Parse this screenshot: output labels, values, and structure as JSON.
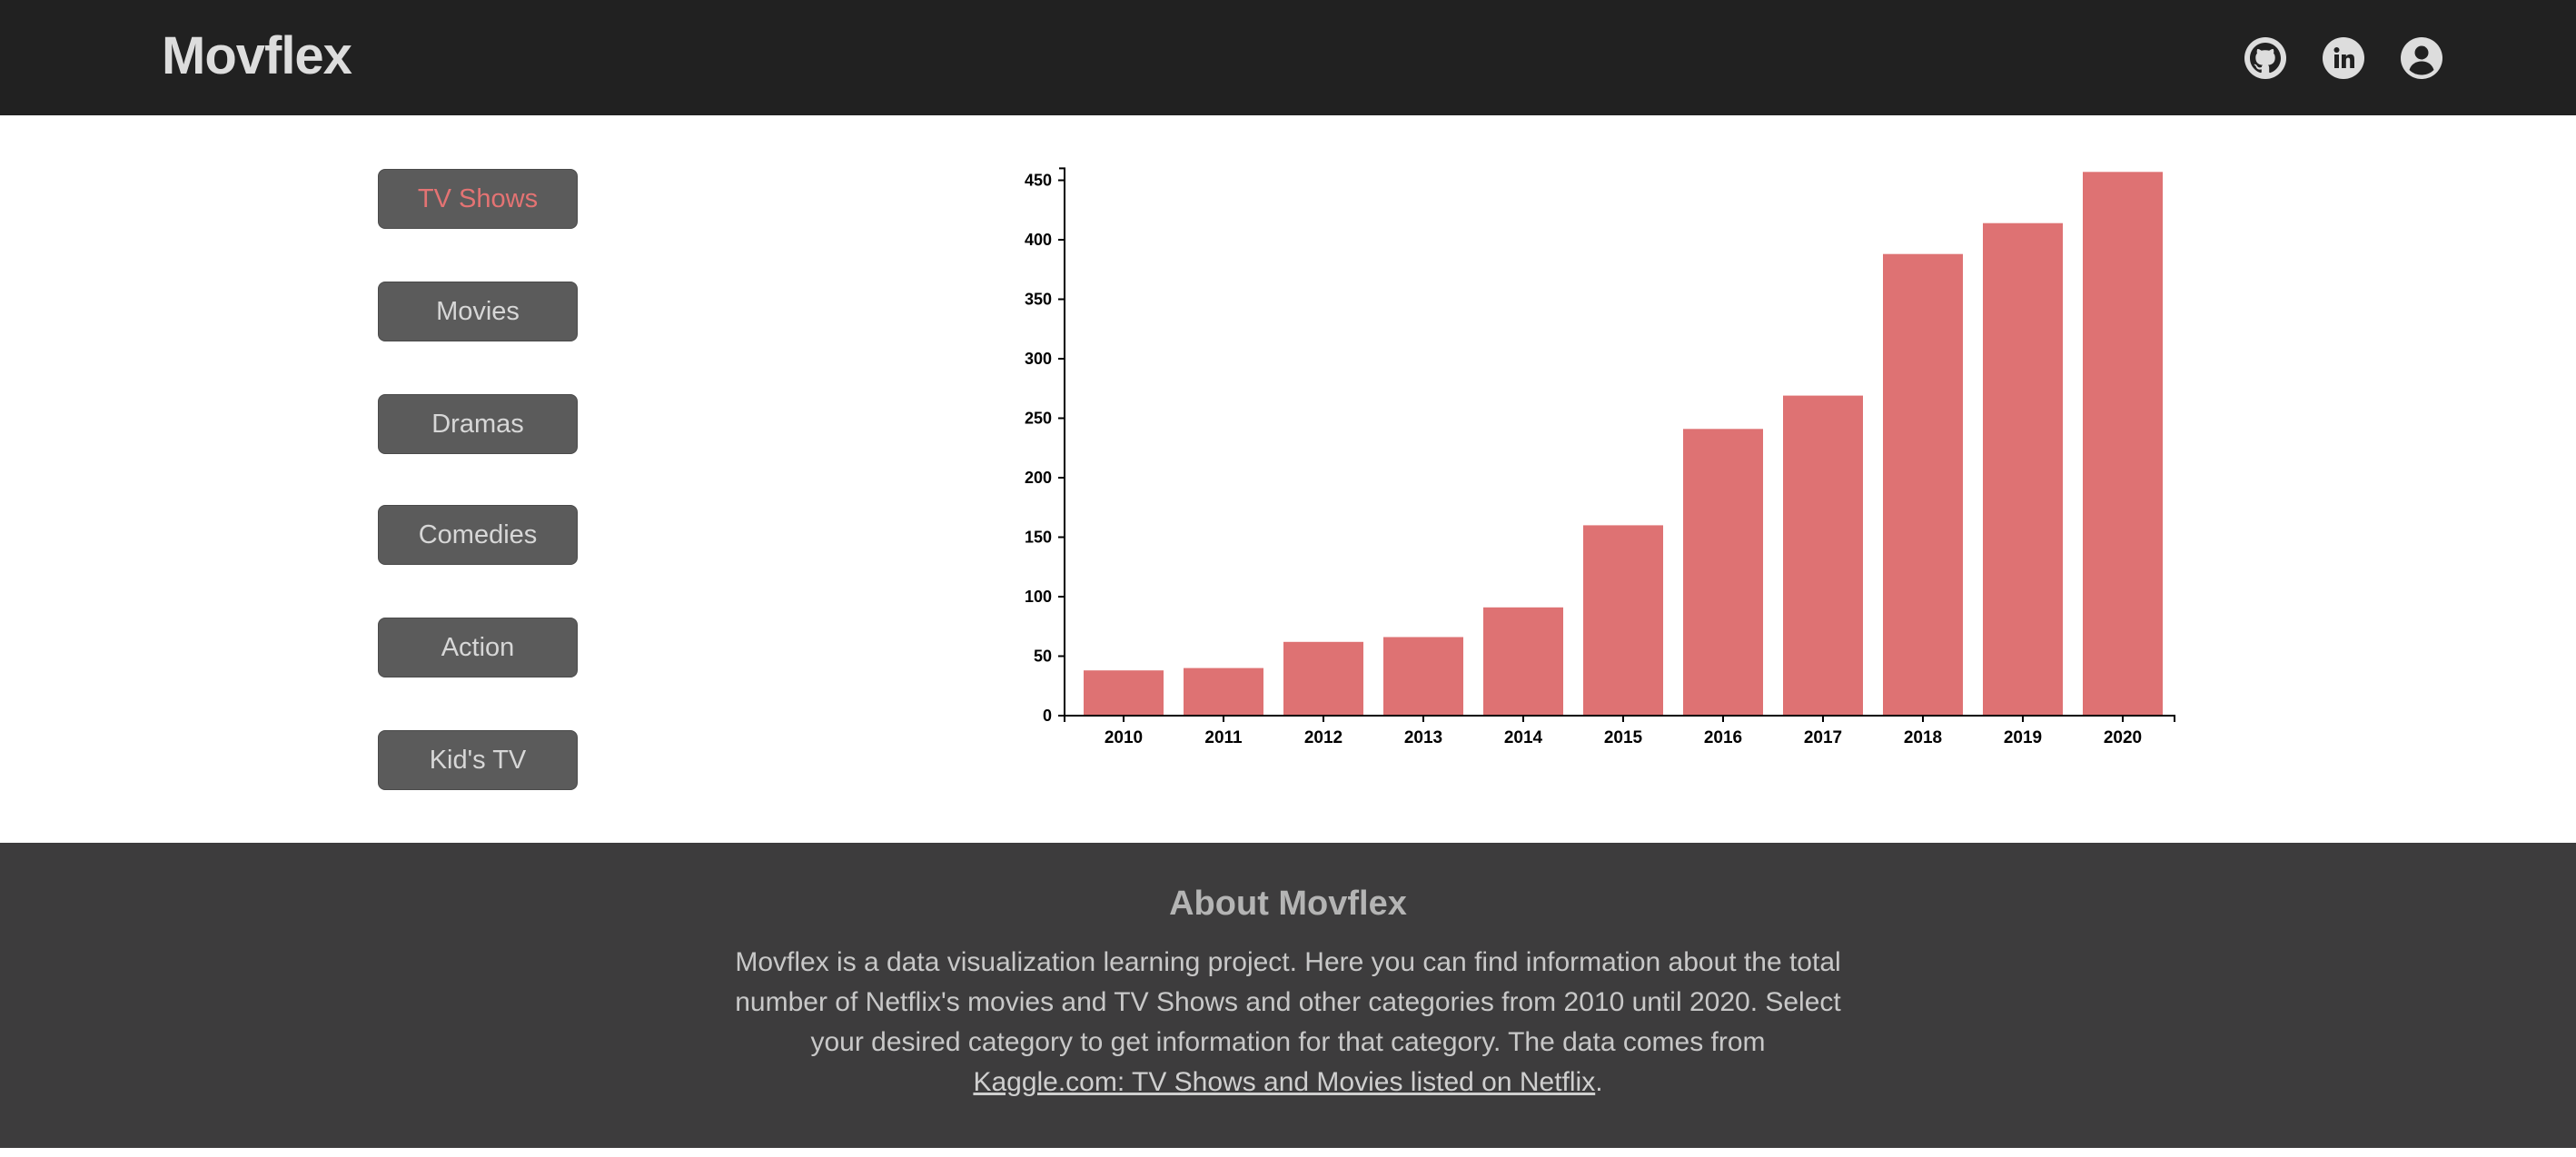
{
  "header": {
    "brand": "Movflex",
    "icons": [
      "github-icon",
      "linkedin-icon",
      "account-icon"
    ]
  },
  "categories": {
    "items": [
      "TV Shows",
      "Movies",
      "Dramas",
      "Comedies",
      "Action",
      "Kid's TV"
    ],
    "selected": "TV Shows"
  },
  "colors": {
    "header_bg": "#212121",
    "footer_bg": "#3d3c3d",
    "bar": "#de7273",
    "active_text": "#e47373",
    "button_bg": "#5b5b5b"
  },
  "chart_data": {
    "type": "bar",
    "categories": [
      "2010",
      "2011",
      "2012",
      "2013",
      "2014",
      "2015",
      "2016",
      "2017",
      "2018",
      "2019",
      "2020"
    ],
    "values": [
      38,
      40,
      62,
      66,
      91,
      160,
      241,
      269,
      388,
      414,
      457
    ],
    "yticks": [
      "0",
      "50",
      "100",
      "150",
      "200",
      "250",
      "300",
      "350",
      "400",
      "450"
    ],
    "ylim": [
      0,
      460
    ],
    "grid": false,
    "legend": "none"
  },
  "footer": {
    "title": "About Movflex",
    "text_before": "Movflex is a data visualization learning project. Here you can find information about the total number of Netflix's movies and TV Shows and other categories from 2010 until 2020. Select your desired category to get information for that category. The data comes from ",
    "link_text": "Kaggle.com: TV Shows and Movies listed on Netflix",
    "text_after": "."
  }
}
